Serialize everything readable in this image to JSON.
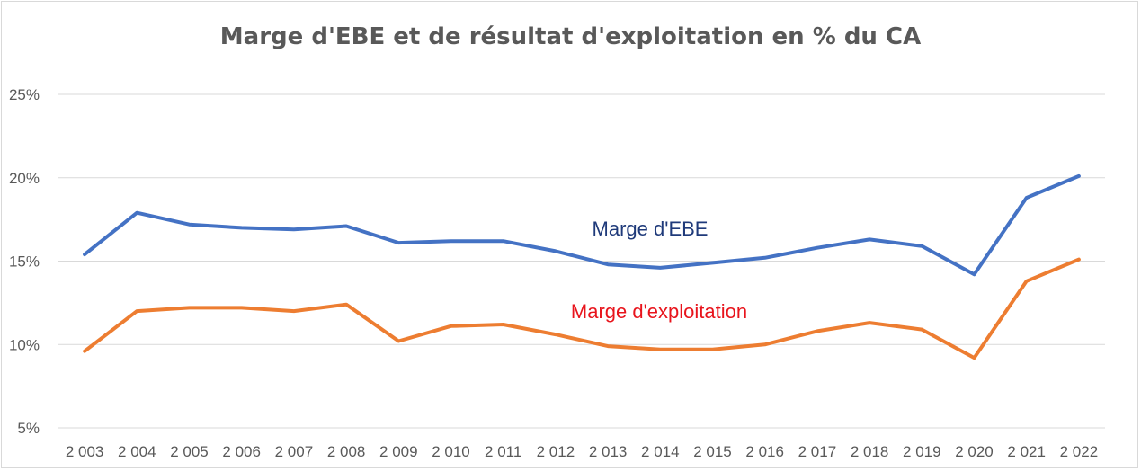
{
  "chart_data": {
    "type": "line",
    "title": "Marge d'EBE et de résultat d'exploitation en % du CA",
    "x": [
      "2 003",
      "2 004",
      "2 005",
      "2 006",
      "2 007",
      "2 008",
      "2 009",
      "2 010",
      "2 011",
      "2 012",
      "2 013",
      "2 014",
      "2 015",
      "2 016",
      "2 017",
      "2 018",
      "2 019",
      "2 020",
      "2 021",
      "2 022"
    ],
    "yticks": [
      "5%",
      "10%",
      "15%",
      "20%",
      "25%"
    ],
    "ylim": [
      5,
      25
    ],
    "grid": true,
    "series": [
      {
        "label": "Marge d'EBE",
        "color": "#4472C4",
        "label_color": "#1F3A7A",
        "values": [
          15.4,
          17.9,
          17.2,
          17.0,
          16.9,
          17.1,
          16.1,
          16.2,
          16.2,
          15.6,
          14.8,
          14.6,
          14.9,
          15.2,
          15.8,
          16.3,
          15.9,
          14.2,
          18.8,
          20.1
        ]
      },
      {
        "label": "Marge d'exploitation",
        "color": "#ED7D31",
        "label_color": "#E8141C",
        "values": [
          9.6,
          12.0,
          12.2,
          12.2,
          12.0,
          12.4,
          10.2,
          11.1,
          11.2,
          10.6,
          9.9,
          9.7,
          9.7,
          10.0,
          10.8,
          11.3,
          10.9,
          9.2,
          13.8,
          15.1
        ]
      }
    ]
  }
}
